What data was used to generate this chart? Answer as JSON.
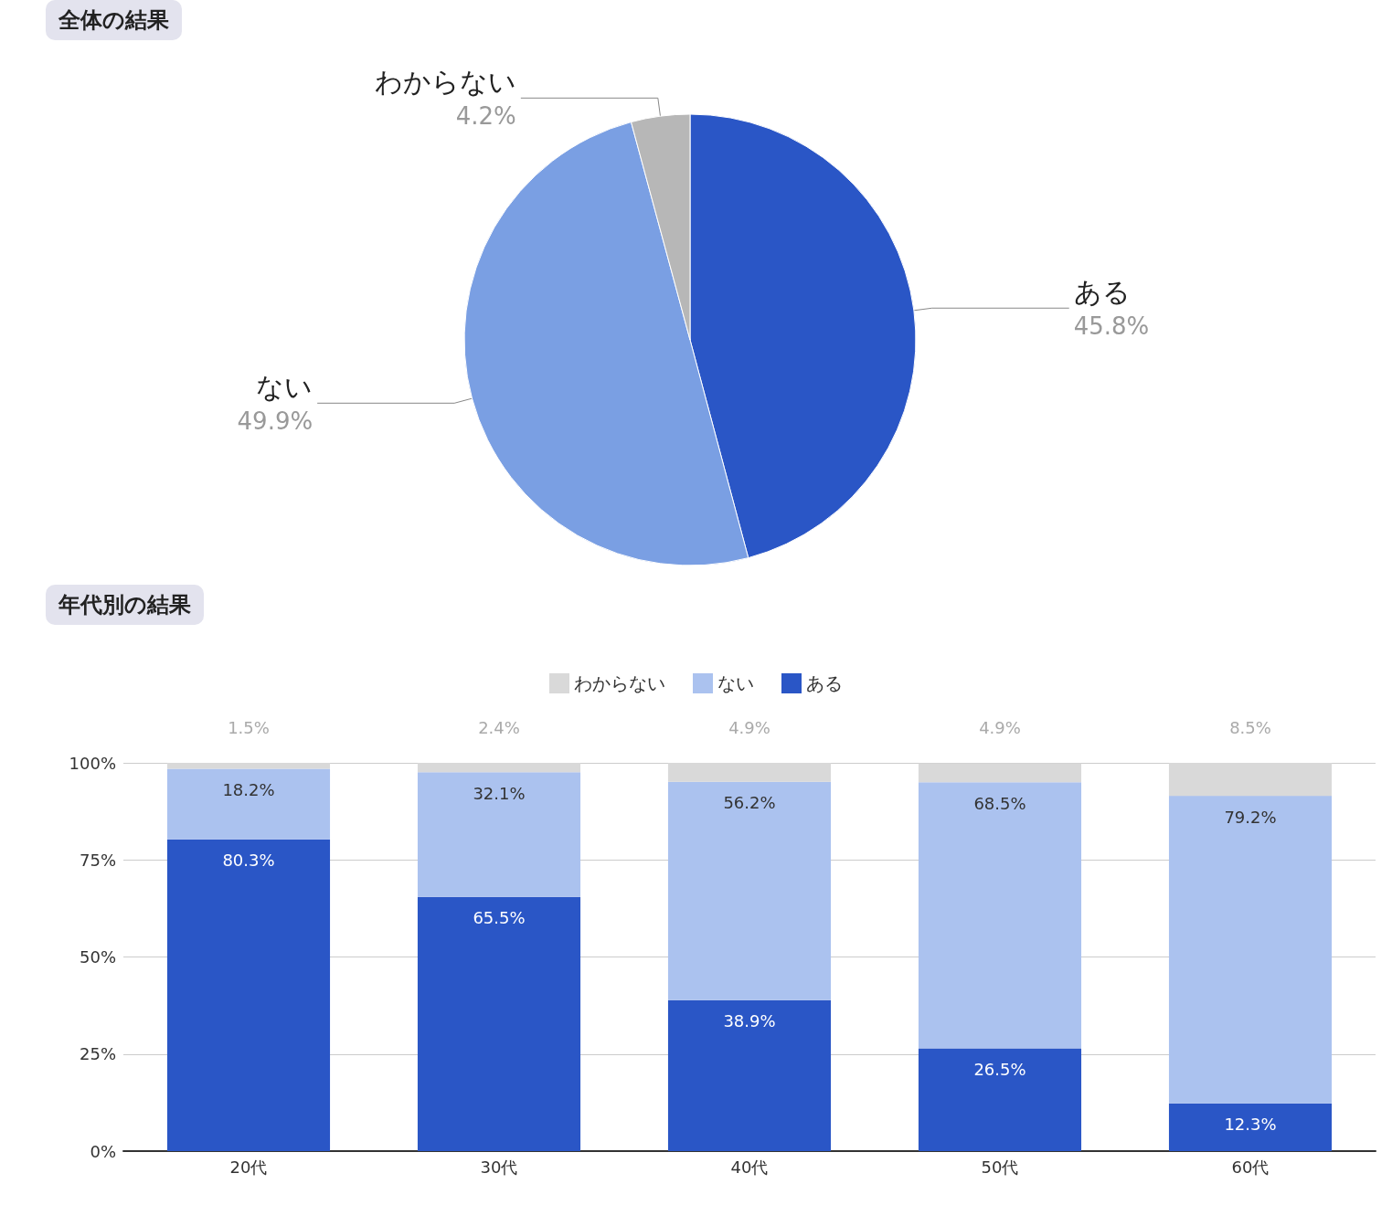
{
  "chart_data": [
    {
      "type": "pie",
      "title": "全体の結果",
      "categories": [
        "ある",
        "ない",
        "わからない"
      ],
      "values": [
        45.8,
        49.9,
        4.2
      ],
      "colors": [
        "#2a56c6",
        "#7a9fe3",
        "#b7b7b7"
      ],
      "value_labels": [
        "45.8%",
        "49.9%",
        "4.2%"
      ],
      "legend": false
    },
    {
      "type": "bar",
      "title": "年代別の結果",
      "stacked": true,
      "categories": [
        "20代",
        "30代",
        "40代",
        "50代",
        "60代"
      ],
      "series": [
        {
          "name": "ある",
          "color": "#2a56c6",
          "values": [
            80.3,
            65.5,
            38.9,
            26.5,
            12.3
          ],
          "value_labels": [
            "80.3%",
            "65.5%",
            "38.9%",
            "26.5%",
            "12.3%"
          ]
        },
        {
          "name": "ない",
          "color": "#abc2ef",
          "values": [
            18.2,
            32.1,
            56.2,
            68.5,
            79.2
          ],
          "value_labels": [
            "18.2%",
            "32.1%",
            "56.2%",
            "68.5%",
            "79.2%"
          ]
        },
        {
          "name": "わからない",
          "color": "#d9d9d9",
          "values": [
            1.5,
            2.4,
            4.9,
            4.9,
            8.5
          ],
          "value_labels": [
            "1.5%",
            "2.4%",
            "4.9%",
            "4.9%",
            "8.5%"
          ]
        }
      ],
      "ylim": [
        0,
        100
      ],
      "yticks": [
        {
          "value": 0,
          "label": "0%"
        },
        {
          "value": 25,
          "label": "25%"
        },
        {
          "value": 50,
          "label": "50%"
        },
        {
          "value": 75,
          "label": "75%"
        },
        {
          "value": 100,
          "label": "100%"
        }
      ],
      "grid": "y",
      "legend": "top"
    }
  ]
}
